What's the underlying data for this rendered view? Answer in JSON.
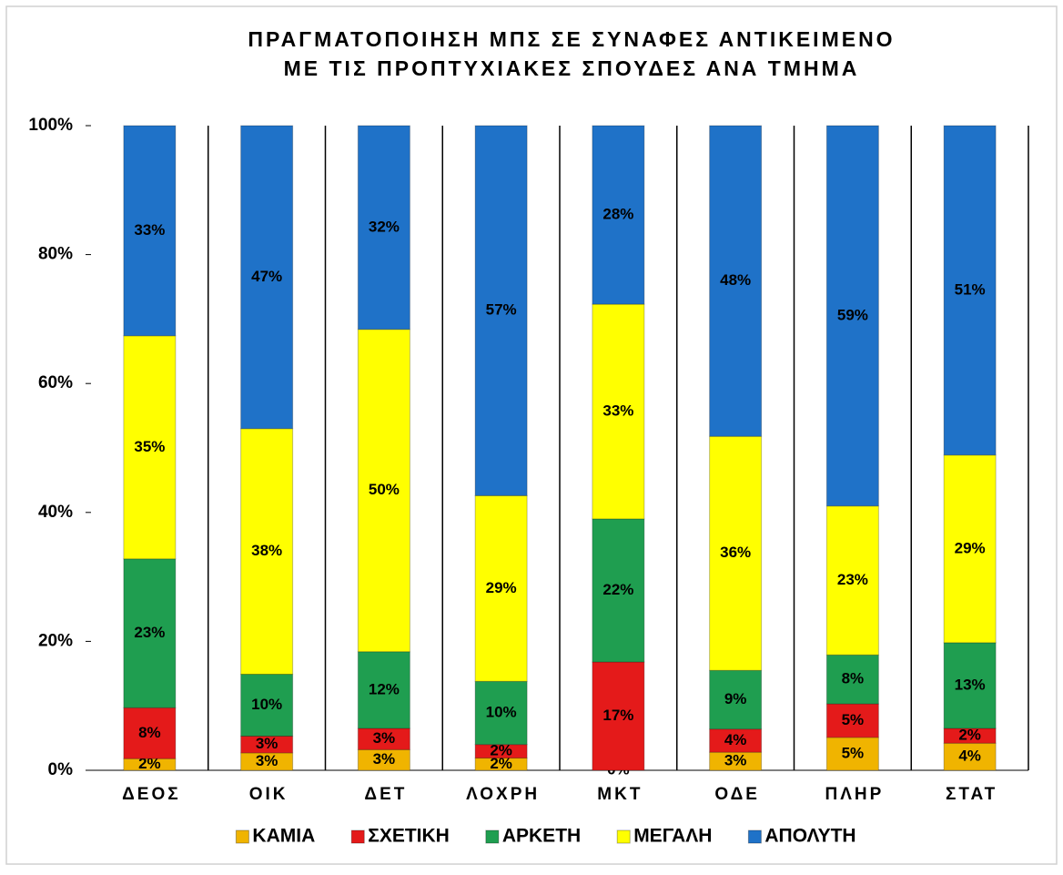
{
  "chart_data": {
    "type": "stacked_bar",
    "title": "ΠΡΑΓΜΑΤΟΠΟΙΗΣΗ ΜΠΣ ΣΕ ΣΥΝΑΦΕΣ ΑΝΤΙΚΕΙΜΕΝΟ",
    "subtitle": "ΜΕ ΤΙΣ ΠΡΟΠΤΥΧΙΑΚΕΣ ΣΠΟΥΔΕΣ ΑΝΑ ΤΜΗΜΑ",
    "categories": [
      "ΔΕΟΣ",
      "ΟΙΚ",
      "ΔΕΤ",
      "ΛΟΧΡΗ",
      "ΜΚΤ",
      "ΟΔΕ",
      "ΠΛΗΡ",
      "ΣΤΑΤ"
    ],
    "series": [
      {
        "name": "ΚΑΜΙΑ",
        "color": "#f0b400",
        "values": [
          1.8,
          2.7,
          3.2,
          1.9,
          0,
          2.8,
          5.1,
          4.2
        ],
        "value_labels": [
          "2%",
          "3%",
          "3%",
          "2%",
          "0%",
          "3%",
          "5%",
          "4%"
        ]
      },
      {
        "name": "ΣΧΕΤΙΚΗ",
        "color": "#e41a1a",
        "values": [
          7.9,
          2.6,
          3.3,
          2.1,
          16.8,
          3.6,
          5.2,
          2.3
        ],
        "value_labels": [
          "8%",
          "3%",
          "3%",
          "2%",
          "17%",
          "4%",
          "5%",
          "2%"
        ]
      },
      {
        "name": "ΑΡΚΕΤΗ",
        "color": "#1f9e50",
        "values": [
          23.1,
          9.6,
          11.9,
          9.8,
          22.2,
          9.1,
          7.6,
          13.3
        ],
        "value_labels": [
          "23%",
          "10%",
          "12%",
          "10%",
          "22%",
          "9%",
          "8%",
          "13%"
        ]
      },
      {
        "name": "ΜΕΓΑΛΗ",
        "color": "#ffff00",
        "values": [
          34.6,
          38.1,
          50.0,
          28.8,
          33.3,
          36.3,
          23.1,
          29.1
        ],
        "value_labels": [
          "35%",
          "38%",
          "50%",
          "29%",
          "33%",
          "36%",
          "23%",
          "29%"
        ]
      },
      {
        "name": "ΑΠΟΛΥΤΗ",
        "color": "#1f72c8",
        "values": [
          32.6,
          47.0,
          31.6,
          57.4,
          27.7,
          48.2,
          59.0,
          51.1
        ],
        "value_labels": [
          "33%",
          "47%",
          "32%",
          "57%",
          "28%",
          "48%",
          "59%",
          "51%"
        ]
      }
    ],
    "ylim": [
      0,
      100
    ],
    "yticks": [
      {
        "value": 0,
        "label": "0%"
      },
      {
        "value": 20,
        "label": "20%"
      },
      {
        "value": 40,
        "label": "40%"
      },
      {
        "value": 60,
        "label": "60%"
      },
      {
        "value": 80,
        "label": "80%"
      },
      {
        "value": 100,
        "label": "100%"
      }
    ],
    "legend": "bottom"
  }
}
